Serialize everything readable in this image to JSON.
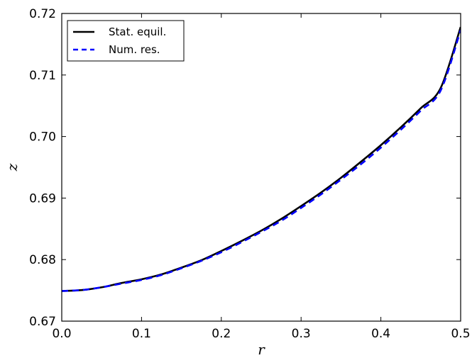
{
  "chart_data": {
    "type": "line",
    "title": "",
    "xlabel": "r",
    "ylabel": "z",
    "xlim": [
      0.0,
      0.5
    ],
    "ylim": [
      0.67,
      0.72
    ],
    "x_ticks": [
      "0.0",
      "0.1",
      "0.2",
      "0.3",
      "0.4",
      "0.5"
    ],
    "y_ticks": [
      "0.67",
      "0.68",
      "0.69",
      "0.70",
      "0.71",
      "0.72"
    ],
    "grid": false,
    "legend_position": "top-left",
    "series": [
      {
        "name": "Stat. equil.",
        "color": "#000000",
        "style": "solid",
        "x": [
          0.0,
          0.025,
          0.05,
          0.075,
          0.1,
          0.125,
          0.15,
          0.175,
          0.2,
          0.225,
          0.25,
          0.275,
          0.3,
          0.325,
          0.35,
          0.375,
          0.4,
          0.425,
          0.45,
          0.475,
          0.5
        ],
        "y": [
          0.6749,
          0.67505,
          0.6755,
          0.6762,
          0.6768,
          0.6776,
          0.6787,
          0.6799,
          0.6814,
          0.683,
          0.6847,
          0.6866,
          0.6887,
          0.6909,
          0.6933,
          0.6959,
          0.6986,
          0.7015,
          0.7046,
          0.7079,
          0.7178
        ]
      },
      {
        "name": "Num. res.",
        "color": "#0000ff",
        "style": "dashed",
        "x": [
          0.0,
          0.025,
          0.05,
          0.075,
          0.1,
          0.125,
          0.15,
          0.175,
          0.2,
          0.225,
          0.25,
          0.275,
          0.3,
          0.325,
          0.35,
          0.375,
          0.4,
          0.425,
          0.45,
          0.475,
          0.5
        ],
        "y": [
          0.6749,
          0.67505,
          0.6755,
          0.6761,
          0.6767,
          0.6775,
          0.6786,
          0.6798,
          0.6812,
          0.6828,
          0.6845,
          0.6863,
          0.6884,
          0.6906,
          0.693,
          0.6955,
          0.6982,
          0.7011,
          0.7042,
          0.7075,
          0.7173
        ]
      }
    ]
  }
}
